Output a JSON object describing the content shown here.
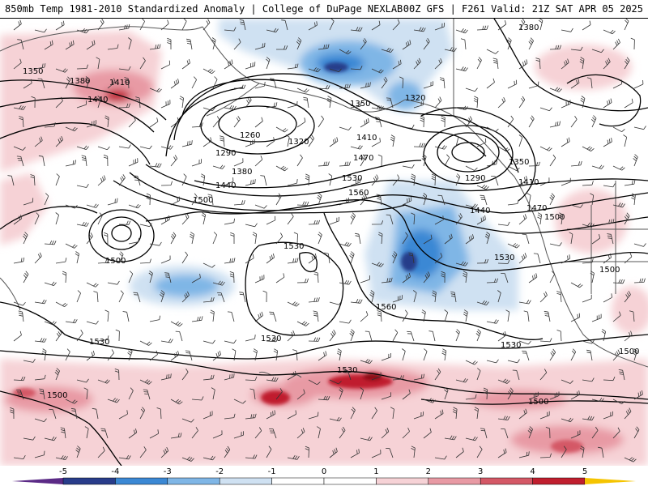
{
  "header": {
    "title_left": "850mb Temp 1981-2010 Standardized Anomaly | College of DuPage NEXLAB",
    "title_right": "00Z GFS | F261 Valid: 21Z SAT APR 05 2025"
  },
  "colors": {
    "anom": {
      "-5": "#5b2a86",
      "-4": "#283c8a",
      "-3": "#3b88d4",
      "-2": "#7fb6e6",
      "-1": "#cfe1f2",
      "0": "#ffffff",
      "1": "#f6d2d6",
      "2": "#e89aa4",
      "3": "#d45866",
      "4": "#c01e2e",
      "5": "#8e0a14",
      "6": "#f5c400"
    },
    "land_line": "#555555",
    "contour": "#000000"
  },
  "colorbar": {
    "ticks": [
      "-5",
      "-4",
      "-3",
      "-2",
      "-1",
      "0",
      "1",
      "2",
      "3",
      "4",
      "5"
    ]
  },
  "contour_labels": [
    "1350",
    "1380",
    "1410",
    "1440",
    "1260",
    "1290",
    "1320",
    "1350",
    "1320",
    "1380",
    "1410",
    "1440",
    "1470",
    "1500",
    "1530",
    "1560",
    "1290",
    "1350",
    "1410",
    "1440",
    "1470",
    "1500",
    "1500",
    "1530",
    "1500",
    "1530",
    "1530",
    "1560",
    "1530",
    "1530",
    "1530",
    "1500",
    "1500",
    "1500",
    "1380"
  ]
}
